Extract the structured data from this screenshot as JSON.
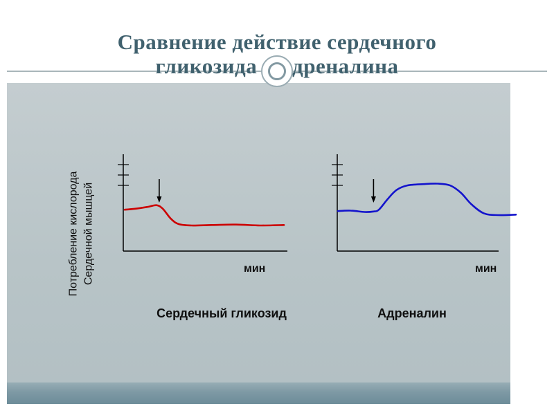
{
  "slide": {
    "title_line1": "Сравнение действие сердечного",
    "title_line2": "гликозида и адреналина"
  },
  "y_axis_label": {
    "line1": "Потребление кислорода",
    "line2": "Сердечной мышцей"
  },
  "colors": {
    "title_text": "#40616e",
    "content_background": "#bcc7ca",
    "bottom_bar": "#7e98a3",
    "header_rule": "#a9b6ba",
    "axis": "#000000",
    "glycoside_curve": "#cc0000",
    "adrenaline_curve": "#1414cc"
  },
  "chart_data": [
    {
      "type": "line",
      "title": "Сердечный гликозид",
      "xlabel": "мин",
      "ylabel": "Потребление кислорода Сердечной мышцей",
      "xlim": [
        0,
        10
      ],
      "ylim": [
        0,
        100
      ],
      "grid": false,
      "legend": "none",
      "y_ticks_unlabeled": 3,
      "description": "Oxygen consumption of heart muscle drops to a lower plateau after administration (down arrow).",
      "series": [
        {
          "name": "Сердечный гликозид",
          "color": "#cc0000",
          "x": [
            0,
            0.6,
            1.4,
            2.0,
            2.4,
            2.9,
            3.4,
            4.2,
            5.5,
            7.0,
            8.5,
            10
          ],
          "y": [
            46,
            47,
            49,
            51,
            47,
            36,
            30,
            28.5,
            29,
            29.5,
            28.5,
            29
          ]
        }
      ],
      "annotations": [
        {
          "type": "down-arrow",
          "x": 2.17
        }
      ]
    },
    {
      "type": "line",
      "title": "Адреналин",
      "xlabel": "мин",
      "ylabel": "",
      "xlim": [
        0,
        10
      ],
      "ylim": [
        0,
        100
      ],
      "grid": false,
      "legend": "none",
      "y_ticks_unlabeled": 3,
      "description": "Oxygen consumption of heart muscle rises to a higher plateau after administration (down arrow), then returns toward baseline.",
      "series": [
        {
          "name": "Адреналин",
          "color": "#1414cc",
          "x": [
            0,
            0.7,
            1.5,
            2.0,
            2.3,
            2.8,
            3.3,
            3.9,
            4.8,
            5.6,
            6.3,
            6.9,
            7.5,
            8.2,
            9.0,
            10
          ],
          "y": [
            44.5,
            45,
            43.5,
            44,
            46,
            58,
            68,
            73,
            74.5,
            75,
            73,
            65,
            52,
            42,
            40,
            40.5
          ]
        }
      ],
      "annotations": [
        {
          "type": "down-arrow",
          "x": 2.0
        }
      ]
    }
  ]
}
